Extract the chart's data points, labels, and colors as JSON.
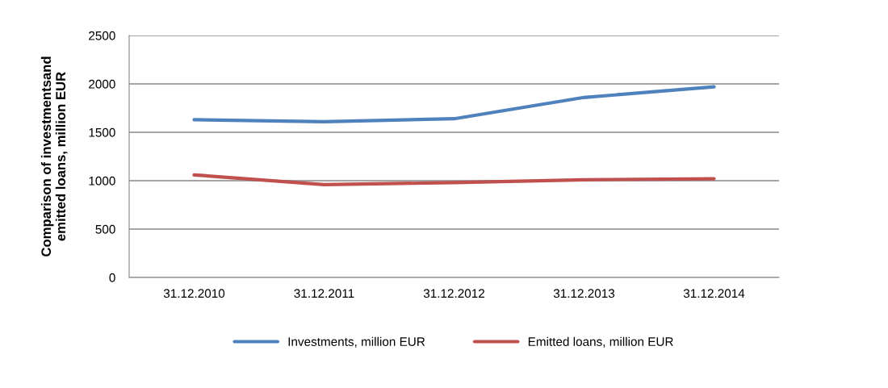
{
  "chart_data": {
    "type": "line",
    "ylabel": "Comparison of investmentsand\nemitted loans, million EUR",
    "categories": [
      "31.12.2010",
      "31.12.2011",
      "31.12.2012",
      "31.12.2013",
      "31.12.2014"
    ],
    "series": [
      {
        "name": "Investments, million EUR",
        "color": "#4f81bd",
        "values": [
          1630,
          1610,
          1640,
          1860,
          1970
        ]
      },
      {
        "name": "Emitted loans, million EUR",
        "color": "#c0504d",
        "values": [
          1060,
          960,
          980,
          1010,
          1020
        ]
      }
    ],
    "ylim": [
      0,
      2500
    ],
    "yticks": [
      0,
      500,
      1000,
      1500,
      2000,
      2500
    ],
    "grid": "y",
    "legend": "bottom",
    "marker": "none",
    "line_style": "solid"
  }
}
